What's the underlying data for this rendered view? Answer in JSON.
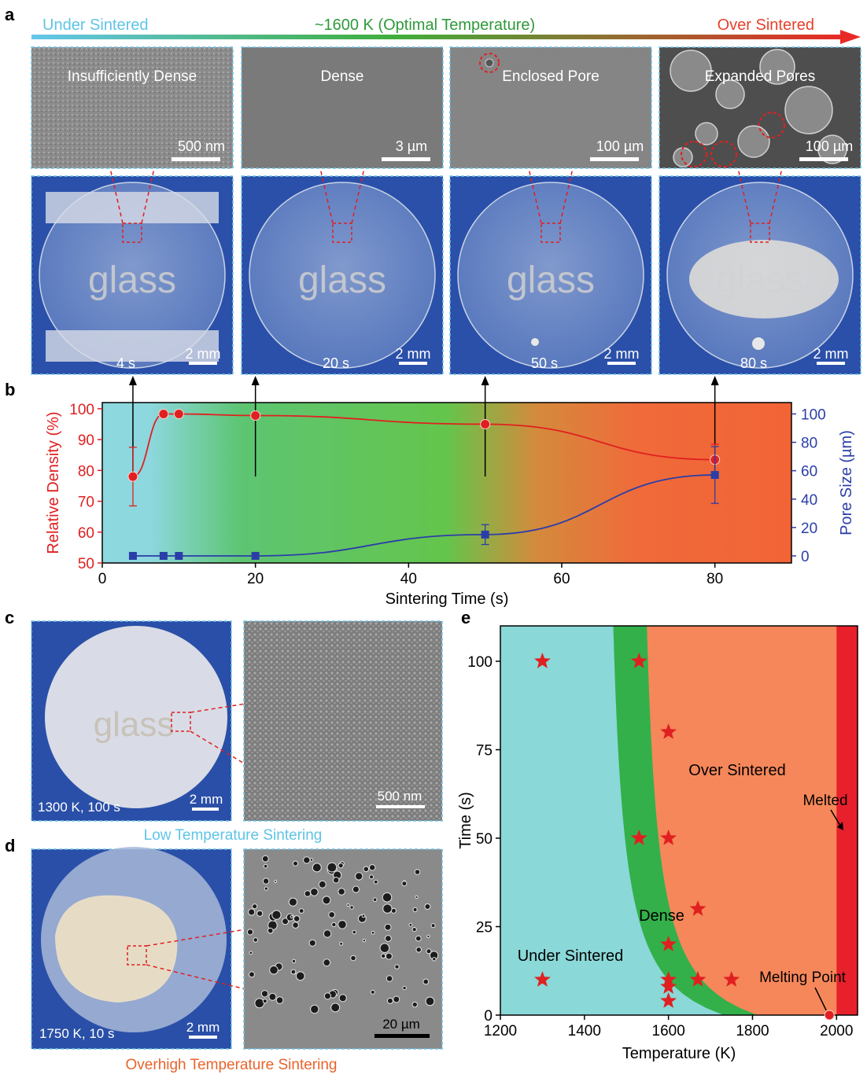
{
  "panel_letters": {
    "a": "a",
    "b": "b",
    "c": "c",
    "d": "d",
    "e": "e"
  },
  "top_arrow": {
    "left": "Under Sintered",
    "center": "~1600 K (Optimal Temperature)",
    "right": "Over Sintered",
    "colors": {
      "left": "#5fc4e6",
      "center": "#2e9a3a",
      "right": "#e8402c"
    }
  },
  "sem_panels": [
    {
      "label": "Insufficiently Dense",
      "scale": "500 nm",
      "time": "4 s",
      "photo_scale": "2 mm",
      "text": "glass"
    },
    {
      "label": "Dense",
      "scale": "3 µm",
      "time": "20 s",
      "photo_scale": "2 mm",
      "text": "glass"
    },
    {
      "label": "Enclosed Pore",
      "scale": "100 µm",
      "time": "50 s",
      "photo_scale": "2 mm",
      "text": "glass"
    },
    {
      "label": "Expanded Pores",
      "scale": "100 µm",
      "time": "80 s",
      "photo_scale": "2 mm",
      "text": "glass"
    }
  ],
  "panel_c": {
    "photo_label": "1300 K, 100 s",
    "photo_scale": "2 mm",
    "sem_scale": "500 nm",
    "caption": "Low Temperature Sintering",
    "text": "glass"
  },
  "panel_d": {
    "photo_label": "1750 K, 10 s",
    "photo_scale": "2 mm",
    "sem_scale": "20 µm",
    "caption": "Overhigh Temperature Sintering"
  },
  "chart_data": [
    {
      "panel": "b",
      "type": "line",
      "xlabel": "Sintering Time (s)",
      "ylabel": "Relative Density (%)",
      "y2label": "Pore Size (µm)",
      "xlim": [
        0,
        90
      ],
      "ylim": [
        50,
        102
      ],
      "y2lim": [
        -5,
        108
      ],
      "xticks": [
        0,
        20,
        40,
        60,
        80
      ],
      "yticks": [
        50,
        60,
        70,
        80,
        90,
        100
      ],
      "y2ticks": [
        0,
        20,
        40,
        60,
        80,
        100
      ],
      "series": [
        {
          "color": "#e02020",
          "axis": "left",
          "marker": "circle",
          "x": [
            4,
            8,
            10,
            20,
            50,
            80
          ],
          "y": [
            78,
            98.3,
            98.3,
            97.8,
            95,
            83.5
          ],
          "err": [
            9.5,
            0,
            0,
            0,
            0,
            5
          ]
        },
        {
          "color": "#2b3ea8",
          "axis": "right",
          "marker": "square",
          "x": [
            4,
            8,
            10,
            20,
            50,
            80
          ],
          "y": [
            0,
            0,
            0,
            0,
            15,
            57
          ],
          "err": [
            0,
            0,
            0,
            0,
            7,
            20
          ]
        }
      ]
    },
    {
      "panel": "e",
      "type": "scatter",
      "xlabel": "Temperature (K)",
      "ylabel": "Time (s)",
      "xlim": [
        1200,
        2050
      ],
      "ylim": [
        0,
        110
      ],
      "xticks": [
        1200,
        1400,
        1600,
        1800,
        2000
      ],
      "yticks": [
        0,
        25,
        50,
        75,
        100
      ],
      "regions": [
        "Under Sintered",
        "Dense",
        "Over Sintered",
        "Melted"
      ],
      "annotations": [
        "Melting Point"
      ],
      "colors": {
        "under": "#8ad8d8",
        "dense": "#34b04a",
        "over": "#f6875a",
        "melted": "#e8202c",
        "star": "#e02020"
      },
      "points": [
        {
          "x": 1300,
          "y": 100
        },
        {
          "x": 1530,
          "y": 100
        },
        {
          "x": 1600,
          "y": 80
        },
        {
          "x": 1530,
          "y": 50
        },
        {
          "x": 1600,
          "y": 50
        },
        {
          "x": 1670,
          "y": 30
        },
        {
          "x": 1600,
          "y": 20
        },
        {
          "x": 1300,
          "y": 10
        },
        {
          "x": 1600,
          "y": 10
        },
        {
          "x": 1670,
          "y": 10
        },
        {
          "x": 1750,
          "y": 10
        },
        {
          "x": 1600,
          "y": 8
        },
        {
          "x": 1600,
          "y": 4
        }
      ],
      "melting_point": {
        "x": 1983,
        "y": 0
      }
    }
  ]
}
